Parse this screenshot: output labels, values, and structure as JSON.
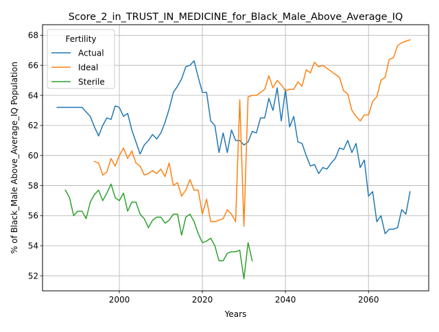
{
  "chart_data": {
    "type": "line",
    "title": "Score_2_in_TRUST_IN_MEDICINE_for_Black_Male_Above_Average_IQ",
    "xlabel": "Years",
    "ylabel": "% of Black_Male Above_Average_IQ Population",
    "xlim": [
      1981.5,
      2074.5
    ],
    "ylim": [
      51.0,
      68.7
    ],
    "xticks": [
      2000,
      2020,
      2040,
      2060
    ],
    "yticks": [
      52,
      54,
      56,
      58,
      60,
      62,
      64,
      66,
      68
    ],
    "grid": true,
    "legend": {
      "title": "Fertility",
      "placement": "top-left"
    },
    "series": [
      {
        "name": "Actual",
        "color": "#1f77b4",
        "x": [
          1985,
          1986,
          1987,
          1988,
          1989,
          1990,
          1991,
          1992,
          1993,
          1994,
          1995,
          1996,
          1997,
          1998,
          1999,
          2000,
          2001,
          2002,
          2003,
          2004,
          2005,
          2006,
          2007,
          2008,
          2009,
          2010,
          2011,
          2012,
          2013,
          2014,
          2015,
          2016,
          2017,
          2018,
          2019,
          2020,
          2021,
          2022,
          2023,
          2024,
          2025,
          2026,
          2027,
          2028,
          2029,
          2030,
          2031,
          2032,
          2033,
          2034,
          2035,
          2036,
          2037,
          2038,
          2039,
          2040,
          2041,
          2042,
          2043,
          2044,
          2045,
          2046,
          2047,
          2048,
          2049,
          2050,
          2051,
          2052,
          2053,
          2054,
          2055,
          2056,
          2057,
          2058,
          2059,
          2060,
          2061,
          2062,
          2063,
          2064,
          2065,
          2066,
          2067,
          2068,
          2069,
          2070
        ],
        "values": [
          63.2,
          63.2,
          63.2,
          63.2,
          63.2,
          63.2,
          63.2,
          62.9,
          62.6,
          61.9,
          61.3,
          62.0,
          62.5,
          62.4,
          63.3,
          63.2,
          62.6,
          62.8,
          61.7,
          60.9,
          60.1,
          60.7,
          61.0,
          61.4,
          61.1,
          61.5,
          62.2,
          63.1,
          64.2,
          64.6,
          65.1,
          65.9,
          66.0,
          66.3,
          65.2,
          64.2,
          64.2,
          62.3,
          62.0,
          60.2,
          61.5,
          60.2,
          61.7,
          61.0,
          61.0,
          60.7,
          60.9,
          61.6,
          61.5,
          62.5,
          62.5,
          63.8,
          63.0,
          64.5,
          62.3,
          64.4,
          61.9,
          62.6,
          60.9,
          60.8,
          60.0,
          59.3,
          59.4,
          58.8,
          59.2,
          59.1,
          59.5,
          59.8,
          60.5,
          60.4,
          61.0,
          60.2,
          60.8,
          59.2,
          59.7,
          57.3,
          57.6,
          55.6,
          56.0,
          54.8,
          55.1,
          55.1,
          55.2,
          56.4,
          56.1,
          57.6
        ]
      },
      {
        "name": "Ideal",
        "color": "#ff7f0e",
        "x": [
          1994,
          1995,
          1996,
          1997,
          1998,
          1999,
          2000,
          2001,
          2002,
          2003,
          2004,
          2005,
          2006,
          2007,
          2008,
          2009,
          2010,
          2011,
          2012,
          2013,
          2014,
          2015,
          2016,
          2017,
          2018,
          2019,
          2020,
          2021,
          2022,
          2023,
          2024,
          2025,
          2026,
          2027,
          2028,
          2029,
          2030,
          2031,
          2032,
          2033,
          2034,
          2035,
          2036,
          2037,
          2038,
          2039,
          2040,
          2041,
          2042,
          2043,
          2044,
          2045,
          2046,
          2047,
          2048,
          2049,
          2050,
          2051,
          2052,
          2053,
          2054,
          2055,
          2056,
          2057,
          2058,
          2059,
          2060,
          2061,
          2062,
          2063,
          2064,
          2065,
          2066,
          2067,
          2068,
          2069,
          2070
        ],
        "values": [
          59.6,
          59.5,
          58.7,
          58.9,
          59.8,
          59.3,
          60.0,
          60.5,
          59.8,
          60.3,
          59.5,
          59.3,
          58.7,
          58.8,
          59.0,
          58.8,
          59.1,
          58.6,
          59.5,
          58.0,
          58.2,
          57.3,
          57.7,
          58.4,
          57.7,
          57.7,
          56.1,
          57.1,
          55.6,
          55.6,
          55.7,
          55.8,
          56.4,
          56.1,
          55.6,
          63.7,
          55.3,
          63.9,
          64.0,
          64.0,
          64.2,
          64.4,
          65.3,
          64.5,
          65.0,
          64.7,
          64.3,
          64.4,
          64.4,
          64.9,
          64.6,
          65.7,
          65.5,
          66.2,
          65.9,
          66.0,
          65.8,
          65.6,
          65.4,
          65.2,
          64.3,
          64.1,
          63.0,
          62.6,
          62.3,
          62.7,
          62.7,
          63.6,
          63.9,
          65.0,
          65.2,
          66.4,
          66.5,
          67.3,
          67.5,
          67.6,
          67.7
        ]
      },
      {
        "name": "Sterile",
        "color": "#2ca02c",
        "x": [
          1987,
          1988,
          1989,
          1990,
          1991,
          1992,
          1993,
          1994,
          1995,
          1996,
          1997,
          1998,
          1999,
          2000,
          2001,
          2002,
          2003,
          2004,
          2005,
          2006,
          2007,
          2008,
          2009,
          2010,
          2011,
          2012,
          2013,
          2014,
          2015,
          2016,
          2017,
          2018,
          2019,
          2020,
          2021,
          2022,
          2023,
          2024,
          2025,
          2026,
          2027,
          2028,
          2029,
          2030,
          2031,
          2032
        ],
        "values": [
          57.7,
          57.2,
          56.0,
          56.3,
          56.3,
          55.8,
          56.9,
          57.4,
          57.7,
          57.0,
          57.5,
          58.1,
          57.2,
          57.0,
          57.5,
          56.3,
          56.9,
          56.9,
          56.1,
          55.8,
          55.2,
          55.7,
          55.9,
          55.9,
          55.5,
          55.7,
          56.1,
          56.1,
          54.7,
          55.9,
          56.1,
          55.6,
          54.8,
          54.2,
          54.3,
          54.5,
          54.0,
          53.0,
          53.0,
          53.5,
          53.6,
          53.6,
          53.7,
          51.8,
          54.2,
          53.0
        ]
      }
    ]
  }
}
